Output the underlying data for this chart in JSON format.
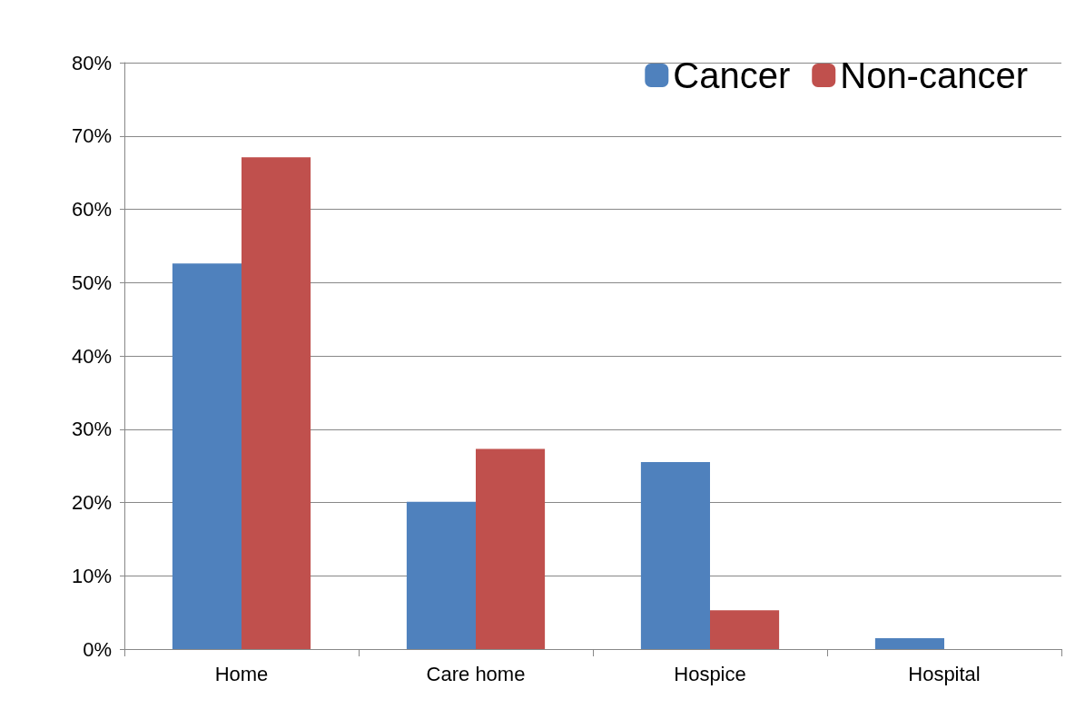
{
  "chart_data": {
    "type": "bar",
    "categories": [
      "Home",
      "Care home",
      "Hospice",
      "Hospital"
    ],
    "series": [
      {
        "name": "Cancer",
        "color": "#4f81bd",
        "values": [
          52.6,
          20.1,
          25.5,
          1.5
        ]
      },
      {
        "name": "Non-cancer",
        "color": "#c0504d",
        "values": [
          67.1,
          27.3,
          5.3,
          0
        ]
      }
    ],
    "ylim": [
      0,
      80
    ],
    "yticks": [
      {
        "value": 0,
        "label": "0%"
      },
      {
        "value": 10,
        "label": "10%"
      },
      {
        "value": 20,
        "label": "20%"
      },
      {
        "value": 30,
        "label": "30%"
      },
      {
        "value": 40,
        "label": "40%"
      },
      {
        "value": 50,
        "label": "50%"
      },
      {
        "value": 60,
        "label": "60%"
      },
      {
        "value": 70,
        "label": "70%"
      },
      {
        "value": 80,
        "label": "80%"
      }
    ],
    "grid": "y",
    "legend": "top right"
  }
}
